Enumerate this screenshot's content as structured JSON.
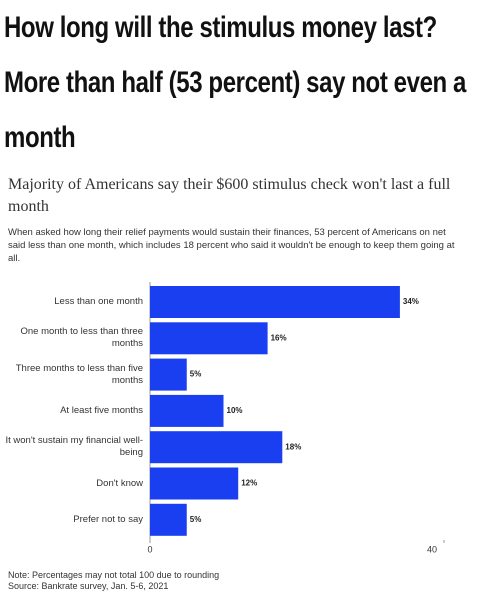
{
  "headline": "How long will the stimulus money last? More than half (53 percent) say not even a month",
  "chart_data": {
    "type": "bar",
    "orientation": "horizontal",
    "title": "Majority of Americans say their $600 stimulus check won't last a full month",
    "subtitle": "When asked how long their relief payments would sustain their finances, 53 percent of Americans on net said less than one month, which includes 18 percent who said it wouldn't be enough to keep them going at all.",
    "categories": [
      "Less than one month",
      "One month to less than three months",
      "Three months to less than five months",
      "At least five months",
      "It won't sustain my financial well-being",
      "Don't know",
      "Prefer not to say"
    ],
    "values": [
      34,
      16,
      5,
      10,
      18,
      12,
      5
    ],
    "value_labels": [
      "34%",
      "16%",
      "5%",
      "10%",
      "18%",
      "12%",
      "5%"
    ],
    "color": "#1a3ff0",
    "xlim": [
      0,
      40
    ],
    "xticks": [
      0,
      40
    ],
    "notes": [
      "Note: Percentages may not total 100 due to rounding",
      "Source: Bankrate survey, Jan. 5-6, 2021"
    ]
  }
}
